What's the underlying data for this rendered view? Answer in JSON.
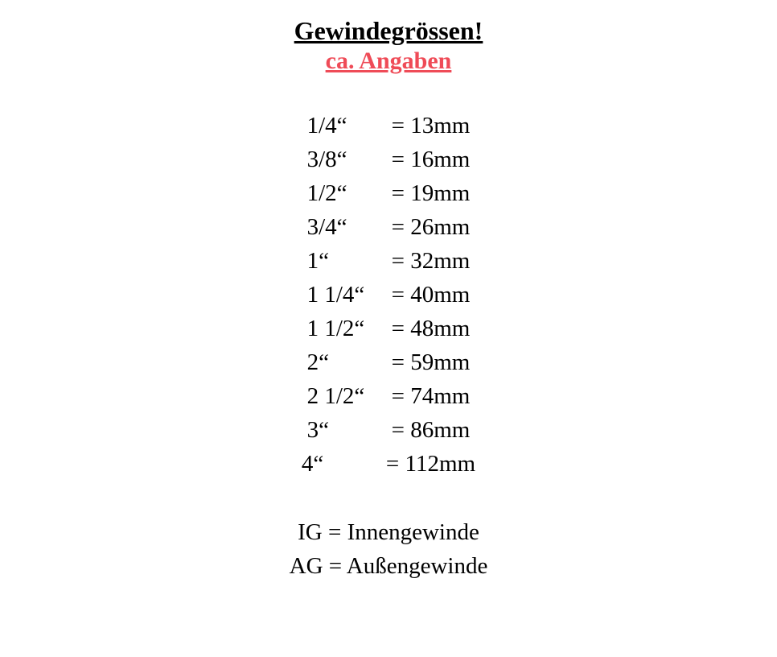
{
  "colors": {
    "background": "#ffffff",
    "title": "#000000",
    "subtitle": "#ef4b57",
    "text": "#000000"
  },
  "typography": {
    "title_fontsize": 32,
    "subtitle_fontsize": 30,
    "body_fontsize": 29,
    "font_family": "Georgia, Times New Roman, serif",
    "title_weight": "bold",
    "subtitle_weight": "bold",
    "body_weight": "normal"
  },
  "header": {
    "title": "Gewindegrössen!",
    "subtitle": "ca. Angaben"
  },
  "table": {
    "type": "table",
    "rows": [
      {
        "size": "1/4“",
        "value": "= 13mm"
      },
      {
        "size": "3/8“",
        "value": "= 16mm"
      },
      {
        "size": "1/2“",
        "value": "= 19mm"
      },
      {
        "size": "3/4“",
        "value": "= 26mm"
      },
      {
        "size": "1“",
        "value": "= 32mm"
      },
      {
        "size": "1 1/4“",
        "value": "= 40mm"
      },
      {
        "size": "1 1/2“",
        "value": "= 48mm"
      },
      {
        "size": "2“",
        "value": "= 59mm"
      },
      {
        "size": "2 1/2“",
        "value": "= 74mm"
      },
      {
        "size": "3“",
        "value": "= 86mm"
      },
      {
        "size": "4“",
        "value": "= 112mm"
      }
    ]
  },
  "legend": {
    "items": [
      "IG = Innengewinde",
      "AG = Außengewinde"
    ]
  }
}
